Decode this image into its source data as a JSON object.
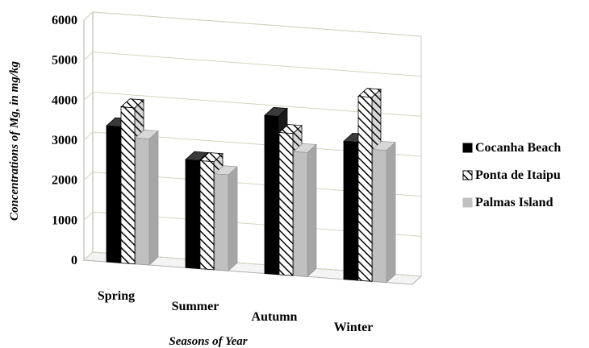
{
  "chart_data": {
    "type": "bar",
    "categories": [
      "Spring",
      "Summer",
      "Autumn",
      "Winter"
    ],
    "series": [
      {
        "name": "Cocanha Beach",
        "values": [
          3400,
          2700,
          3950,
          3450
        ],
        "color": "#000000",
        "pattern": "solid"
      },
      {
        "name": "Ponta de Itaipu",
        "values": [
          3900,
          2700,
          3550,
          4600
        ],
        "color": "#ffffff",
        "pattern": "diagonal-hatch"
      },
      {
        "name": "Palmas Island",
        "values": [
          3150,
          2400,
          3100,
          3300
        ],
        "color": "#c0c0c0",
        "pattern": "solid"
      }
    ],
    "xlabel": "Seasons of Year",
    "ylabel": "Concentrations of Mg, in mg/kg",
    "ylim": [
      0,
      6000
    ],
    "yticks": [
      "0",
      "1000",
      "2000",
      "3000",
      "4000",
      "5000",
      "6000"
    ],
    "grid": true,
    "legend": "right",
    "three_d": true
  }
}
